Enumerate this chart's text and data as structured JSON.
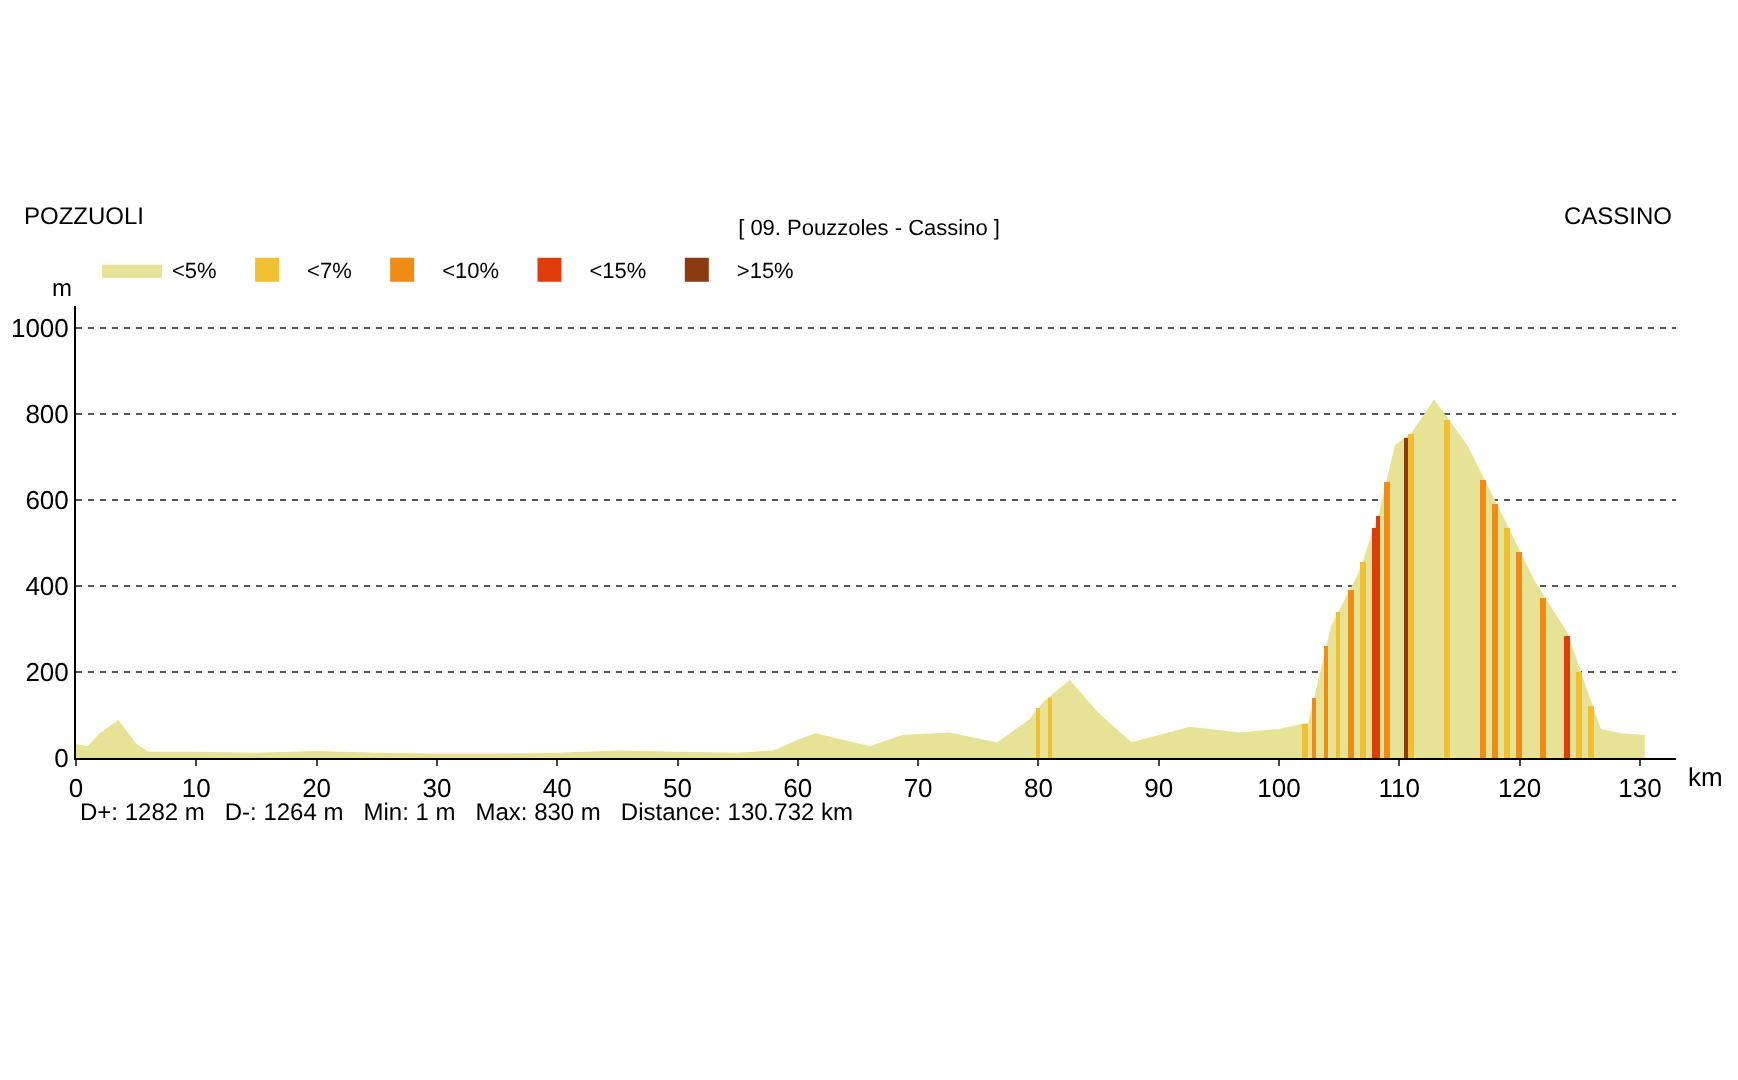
{
  "chart_data": {
    "type": "area",
    "title": "[ 09. Pouzzoles - Cassino ]",
    "xlabel": "km",
    "ylabel": "m",
    "annotations": [
      "POZZUOLI",
      "CASSINO",
      "D+: 1282 m   D-: 1264 m   Min: 1 m   Max: 830 m   Distance: 130.732 km"
    ],
    "xlim": [
      0,
      133
    ],
    "xticks": [
      0,
      10,
      20,
      30,
      40,
      50,
      60,
      70,
      80,
      90,
      100,
      110,
      120,
      130
    ],
    "ylim": [
      0,
      1050
    ],
    "yticks": [
      0,
      200,
      400,
      600,
      800,
      1000
    ],
    "grid": "y",
    "line_style": "dotted",
    "legend": "top left",
    "series": [
      {
        "name": "<5%",
        "color": "#e6e296",
        "x": [
          0,
          1,
          2,
          3.5,
          5,
          6,
          10,
          15,
          20,
          25,
          30,
          35,
          40,
          45,
          50,
          55,
          58,
          60,
          61.5,
          63,
          66,
          68.7,
          72.6,
          76.6,
          79.3,
          80.5,
          82.6,
          84.9,
          87.7,
          92.6,
          96.7,
          100,
          102.5,
          104.4,
          106.7,
          108.4,
          109.7,
          111.1,
          112.9,
          115.6,
          118.4,
          121.1,
          123.9,
          125.5,
          126.7,
          128.5,
          130.4
        ],
        "values": [
          30,
          25,
          55,
          85,
          30,
          12,
          12,
          10,
          14,
          10,
          8,
          8,
          10,
          15,
          12,
          10,
          15,
          40,
          55,
          45,
          25,
          51,
          57,
          34,
          88,
          130,
          178,
          104,
          34,
          70,
          57,
          65,
          80,
          305,
          429,
          569,
          725,
          755,
          829,
          725,
          569,
          414,
          290,
          160,
          65,
          55,
          51
        ]
      },
      {
        "name": "<7%",
        "type": "bar",
        "color": "#f0c030",
        "x": [
          80,
          81,
          102.2,
          105,
          107,
          111,
          114,
          119,
          125,
          126
        ],
        "values": [
          116,
          141,
          77,
          337,
          456,
          753,
          787,
          535,
          201,
          121
        ]
      },
      {
        "name": "<10%",
        "type": "bar",
        "color": "#f08c14",
        "x": [
          103,
          104,
          106,
          109,
          117,
          118,
          120,
          122
        ],
        "values": [
          139,
          258,
          391,
          641,
          647,
          591,
          477,
          374
        ]
      },
      {
        "name": "<15%",
        "type": "bar",
        "color": "#e03c0a",
        "x": [
          108,
          108.3,
          124
        ],
        "values": [
          536,
          561,
          282
        ]
      },
      {
        "name": ">15%",
        "type": "bar",
        "color": "#8b3a10",
        "x": [
          110.6
        ],
        "values": [
          744
        ]
      }
    ]
  }
}
